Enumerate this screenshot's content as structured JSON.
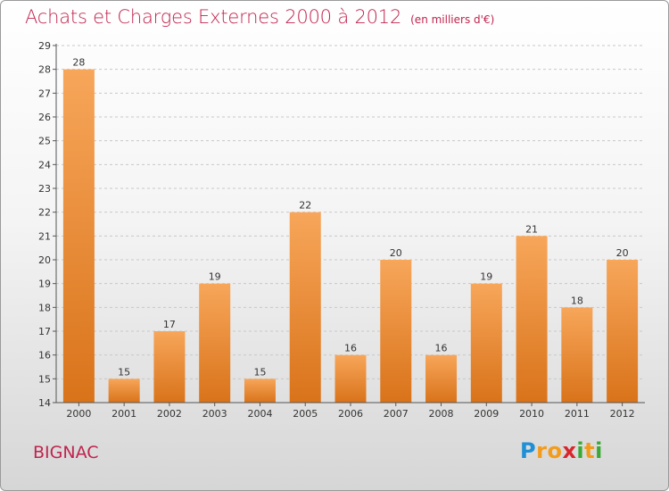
{
  "header": {
    "title": "Achats et Charges Externes 2000 à 2012",
    "unit": "(en milliers d'€)"
  },
  "footer": {
    "commune": "BIGNAC",
    "logo_letters": [
      {
        "ch": "P",
        "color": "#1f8fd6"
      },
      {
        "ch": "r",
        "color": "#f39c1b"
      },
      {
        "ch": "o",
        "color": "#f39c1b"
      },
      {
        "ch": "x",
        "color": "#d9262b"
      },
      {
        "ch": "i",
        "color": "#3aa935"
      },
      {
        "ch": "t",
        "color": "#f39c1b"
      },
      {
        "ch": "i",
        "color": "#3aa935"
      }
    ]
  },
  "colors": {
    "title": "#c0244e",
    "bar_top": "#f7a65a",
    "bar_bottom": "#d9731a",
    "grid": "#c8c8c8"
  },
  "chart_data": {
    "type": "bar",
    "title": "Achats et Charges Externes 2000 à 2012",
    "subtitle": "(en milliers d'€)",
    "categories": [
      "2000",
      "2001",
      "2002",
      "2003",
      "2004",
      "2005",
      "2006",
      "2007",
      "2008",
      "2009",
      "2010",
      "2011",
      "2012"
    ],
    "values": [
      28,
      15,
      17,
      19,
      15,
      22,
      16,
      20,
      16,
      19,
      21,
      18,
      20
    ],
    "ylim": [
      14,
      29
    ],
    "yticks": [
      14,
      15,
      16,
      17,
      18,
      19,
      20,
      21,
      22,
      23,
      24,
      25,
      26,
      27,
      28,
      29
    ],
    "grid": "horizontal dashed",
    "data_labels": true
  }
}
